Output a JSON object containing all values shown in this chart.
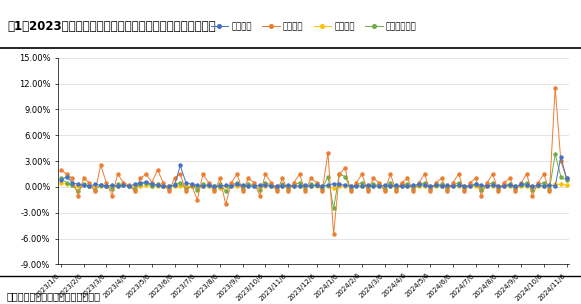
{
  "title": "图1：2023年以来标品信托周平均收益率走势（按策略划分）",
  "footer": "数据来源：用益金融信托研究院整理",
  "legend": [
    "平均业绩",
    "股票策略",
    "债券策略",
    "组合基金策略"
  ],
  "colors": {
    "avg": "#4472C4",
    "stock": "#ED7D31",
    "bond": "#FFC000",
    "combo": "#70AD47"
  },
  "ylim": [
    -0.09,
    0.15
  ],
  "yticks": [
    -0.09,
    -0.06,
    -0.03,
    0.0,
    0.03,
    0.06,
    0.09,
    0.12,
    0.15
  ],
  "x_labels": [
    "2023/1/6",
    "2023/2/6",
    "2023/3/6",
    "2023/4/6",
    "2023/5/6",
    "2023/6/6",
    "2023/7/6",
    "2023/8/6",
    "2023/9/6",
    "2023/10/6",
    "2023/11/6",
    "2023/12/6",
    "2024/1/6",
    "2024/2/6",
    "2024/3/6",
    "2024/4/6",
    "2024/5/6",
    "2024/6/6",
    "2024/7/6",
    "2024/8/6",
    "2024/9/6",
    "2024/10/6",
    "2024/11/6"
  ],
  "avg": [
    0.008,
    0.012,
    0.005,
    0.003,
    0.002,
    0.001,
    0.003,
    0.002,
    0.001,
    0.002,
    0.001,
    0.002,
    0.001,
    0.003,
    0.005,
    0.006,
    0.003,
    0.002,
    0.001,
    0.001,
    0.002,
    0.025,
    0.005,
    0.003,
    0.002,
    0.001,
    0.002,
    0.001,
    0.001,
    0.002,
    0.001,
    0.003,
    0.002,
    0.001,
    0.001,
    0.002,
    0.002,
    0.001,
    0.001,
    0.001,
    0.002,
    0.001,
    0.001,
    0.002,
    0.001,
    0.002,
    0.001,
    0.002,
    0.004,
    0.003,
    0.002,
    0.001,
    0.001,
    0.001,
    0.002,
    0.001,
    0.001,
    0.002,
    0.001,
    0.002,
    0.001,
    0.001,
    0.002,
    0.003,
    0.002,
    0.001,
    0.002,
    0.001,
    0.002,
    0.001,
    0.002,
    0.001,
    0.001,
    0.003,
    0.002,
    0.001,
    0.002,
    0.001,
    0.001,
    0.002,
    0.001,
    0.003,
    0.002,
    0.001,
    0.002,
    0.001,
    0.002,
    0.001,
    0.035,
    0.01
  ],
  "stock": [
    0.02,
    0.015,
    0.01,
    -0.01,
    0.01,
    0.005,
    -0.005,
    0.025,
    0.005,
    -0.01,
    0.015,
    0.005,
    0.002,
    -0.005,
    0.01,
    0.015,
    0.005,
    0.02,
    0.005,
    -0.005,
    0.01,
    0.015,
    -0.005,
    0.002,
    -0.015,
    0.015,
    0.005,
    -0.005,
    0.01,
    -0.02,
    0.005,
    0.015,
    -0.005,
    0.01,
    0.005,
    -0.01,
    0.015,
    0.005,
    -0.005,
    0.01,
    -0.005,
    0.005,
    0.015,
    -0.005,
    0.01,
    0.005,
    -0.005,
    0.04,
    -0.055,
    0.015,
    0.022,
    -0.005,
    0.005,
    0.015,
    -0.005,
    0.01,
    0.005,
    -0.005,
    0.015,
    -0.005,
    0.005,
    0.01,
    -0.005,
    0.005,
    0.015,
    -0.005,
    0.005,
    0.01,
    -0.005,
    0.005,
    0.015,
    -0.005,
    0.005,
    0.01,
    -0.01,
    0.005,
    0.015,
    -0.005,
    0.005,
    0.01,
    -0.005,
    0.005,
    0.015,
    -0.01,
    0.005,
    0.015,
    -0.005,
    0.115,
    0.03,
    0.01
  ],
  "bond": [
    0.005,
    0.003,
    0.002,
    0.001,
    0.002,
    0.001,
    0.001,
    0.001,
    0.001,
    0.001,
    0.001,
    0.002,
    0.001,
    0.001,
    0.001,
    0.002,
    0.001,
    0.001,
    0.001,
    0.001,
    0.001,
    0.001,
    0.001,
    0.001,
    0.001,
    0.001,
    0.001,
    0.001,
    -0.001,
    0.001,
    0.001,
    0.001,
    0.001,
    0.001,
    0.001,
    0.001,
    0.001,
    0.001,
    0.001,
    0.001,
    0.001,
    0.001,
    0.001,
    0.001,
    0.001,
    0.001,
    0.001,
    0.001,
    -0.001,
    0.001,
    0.001,
    0.001,
    0.001,
    0.001,
    0.001,
    0.001,
    0.001,
    0.001,
    0.001,
    0.001,
    0.001,
    0.001,
    0.001,
    0.001,
    0.001,
    0.001,
    0.001,
    0.001,
    0.001,
    0.001,
    0.001,
    0.001,
    0.001,
    0.001,
    0.001,
    0.001,
    0.001,
    0.001,
    0.001,
    0.001,
    0.001,
    0.001,
    0.001,
    0.001,
    0.001,
    0.001,
    0.001,
    0.003,
    0.003,
    0.002
  ],
  "combo": [
    0.01,
    0.005,
    0.002,
    -0.005,
    0.003,
    0.001,
    -0.003,
    0.002,
    0.001,
    -0.002,
    0.003,
    0.002,
    0.001,
    -0.002,
    0.003,
    0.005,
    0.001,
    0.003,
    0.001,
    -0.002,
    0.003,
    0.005,
    -0.002,
    0.001,
    -0.003,
    0.003,
    0.002,
    -0.002,
    0.003,
    -0.005,
    0.002,
    0.005,
    -0.002,
    0.003,
    0.002,
    -0.003,
    0.005,
    0.002,
    -0.002,
    0.003,
    -0.002,
    0.002,
    0.005,
    -0.002,
    0.003,
    0.002,
    -0.002,
    0.012,
    -0.025,
    0.015,
    0.012,
    -0.002,
    0.002,
    0.005,
    -0.002,
    0.003,
    0.002,
    -0.002,
    0.005,
    -0.002,
    0.002,
    0.003,
    -0.002,
    0.002,
    0.005,
    -0.002,
    0.002,
    0.003,
    -0.002,
    0.002,
    0.005,
    -0.002,
    0.002,
    0.003,
    -0.003,
    0.002,
    0.005,
    -0.002,
    0.002,
    0.003,
    -0.002,
    0.002,
    0.005,
    -0.003,
    0.002,
    0.005,
    -0.002,
    0.038,
    0.012,
    0.008
  ]
}
